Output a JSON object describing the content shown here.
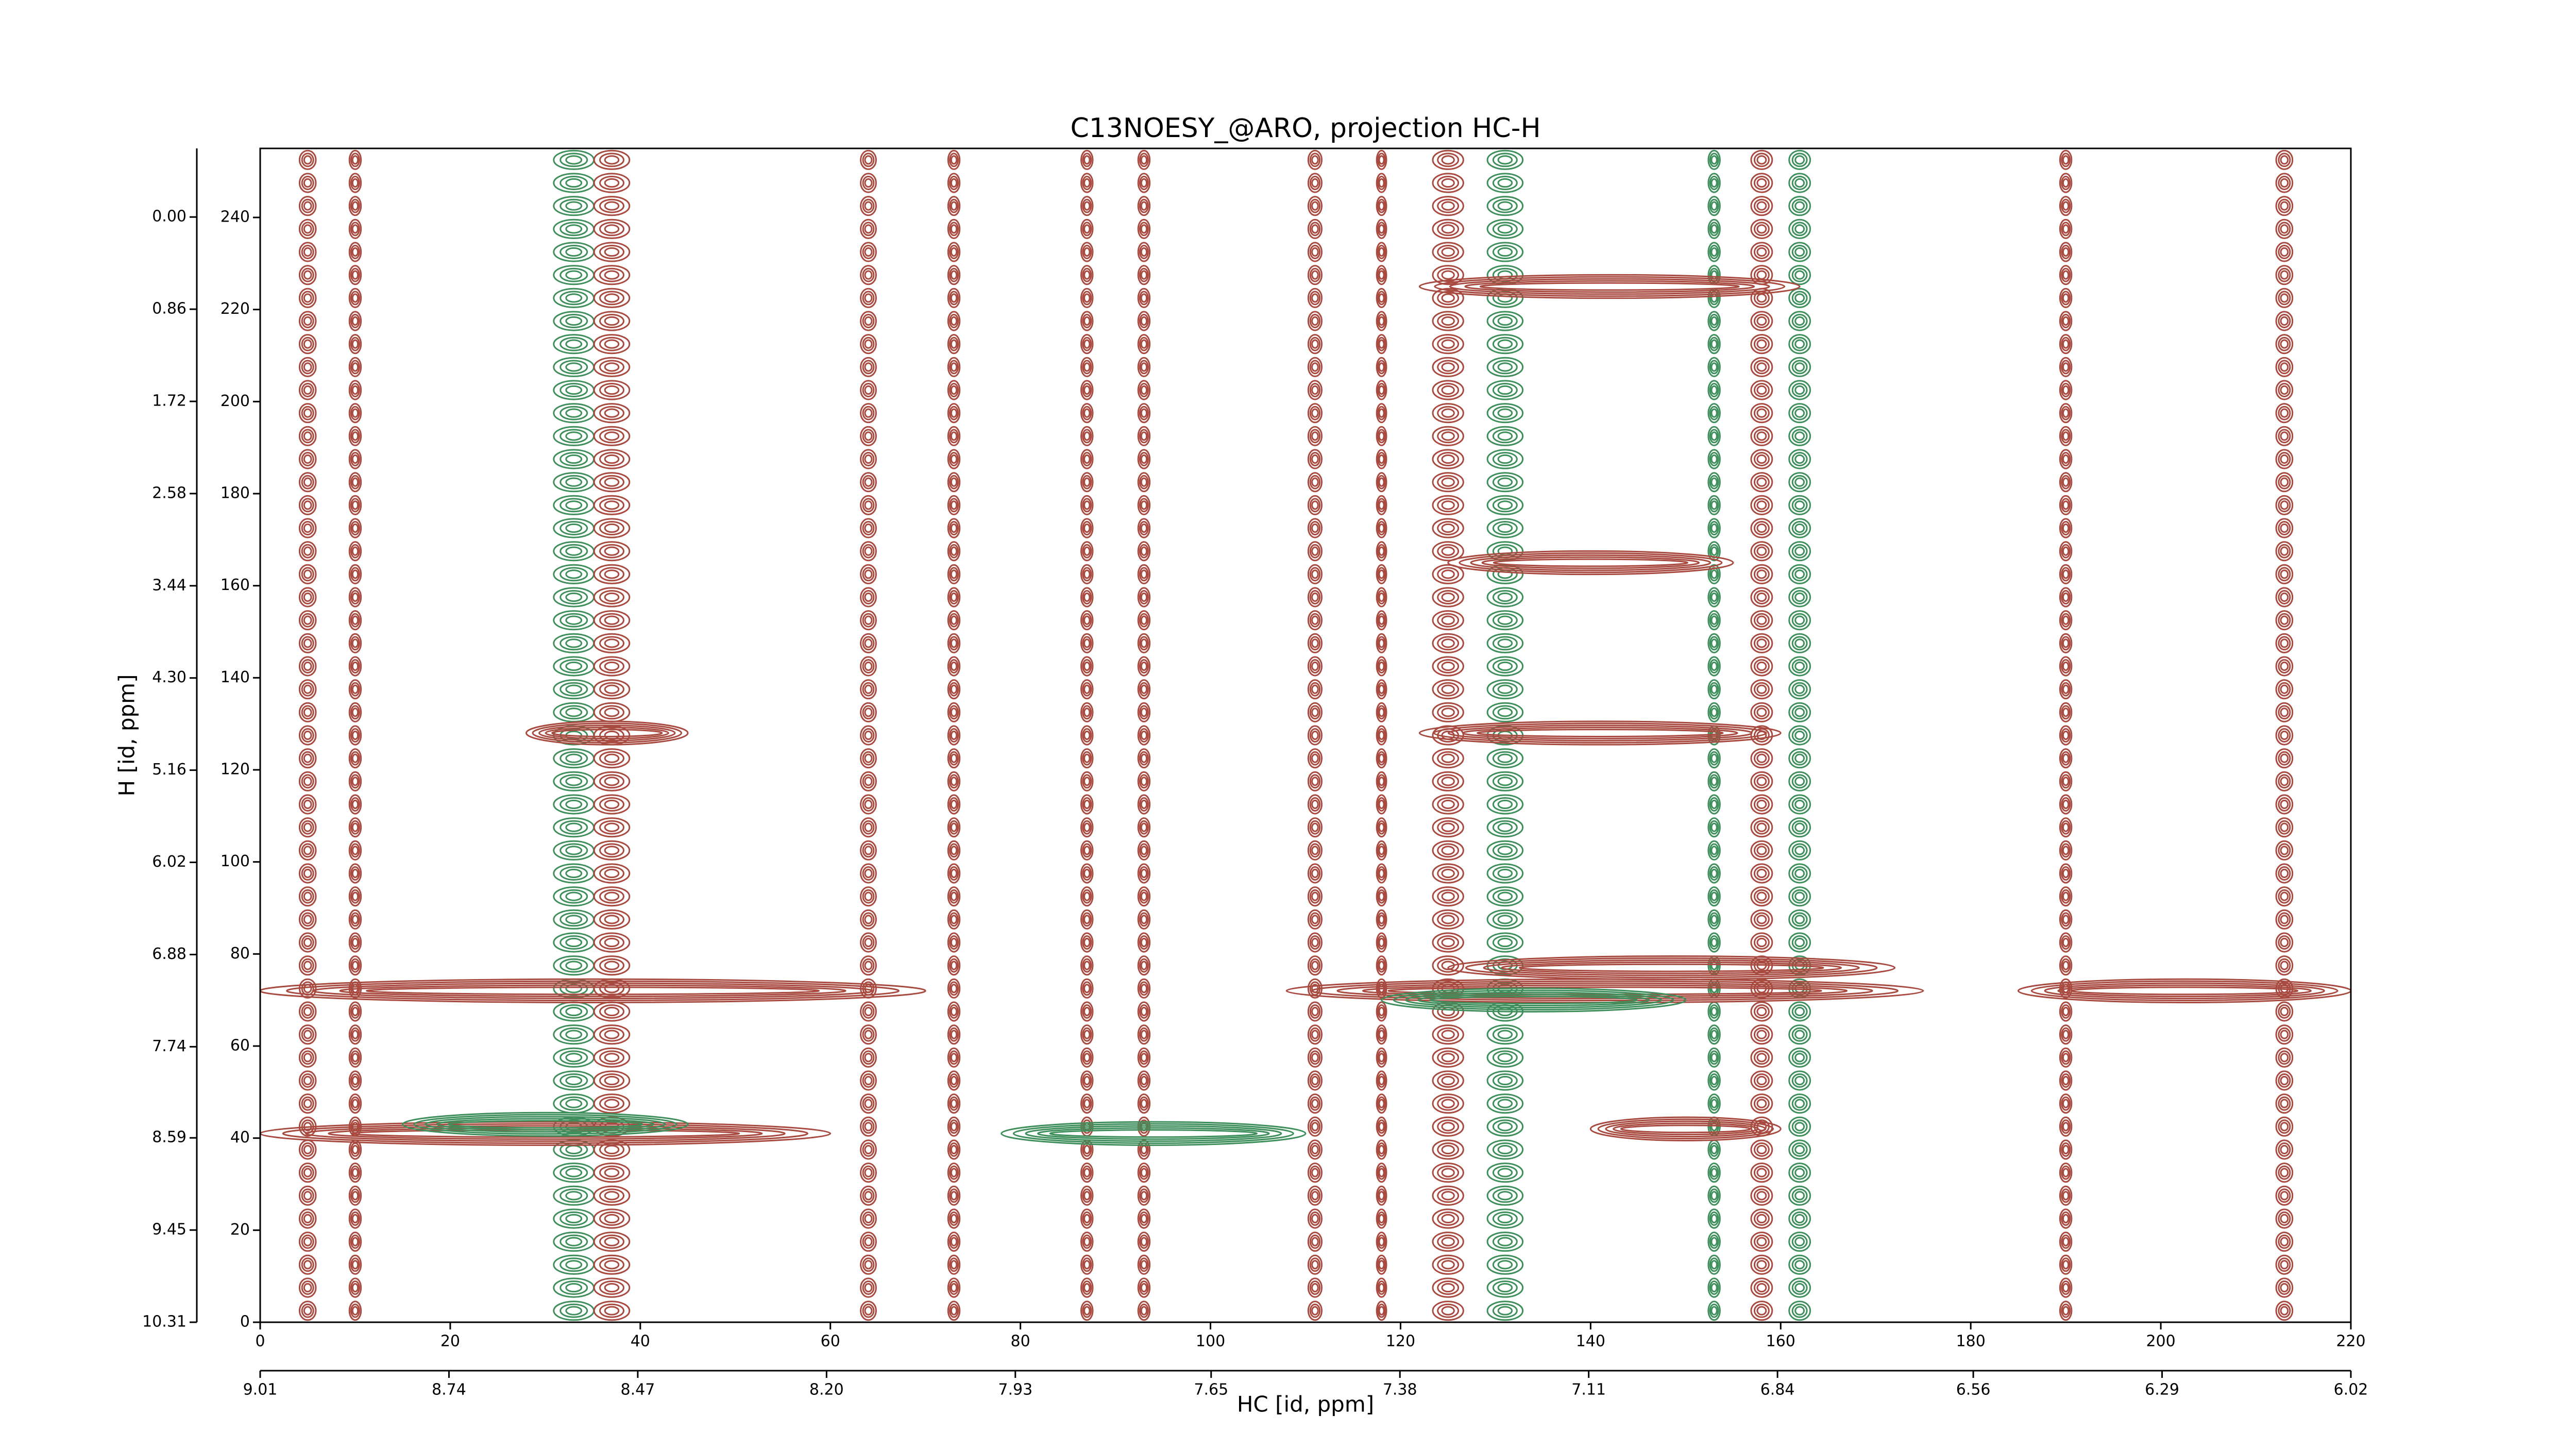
{
  "chart_data": {
    "type": "contour",
    "title": "C13NOESY_@ARO, projection HC-H",
    "x_label": "HC [id, ppm]",
    "y_label": "H [id, ppm]",
    "xlim": [
      0,
      220
    ],
    "xticks": [
      0,
      20,
      40,
      60,
      80,
      100,
      120,
      140,
      160,
      180,
      200,
      220
    ],
    "x2lim": [
      9.01,
      6.02
    ],
    "x2ticks": [
      9.01,
      8.74,
      8.47,
      {
        "value": 8.2,
        "label": "8.20"
      },
      7.93,
      7.65,
      7.38,
      7.11,
      6.84,
      6.56,
      6.29,
      6.02
    ],
    "ylim": [
      0,
      255
    ],
    "yticks": [
      0,
      20,
      40,
      60,
      80,
      100,
      120,
      140,
      160,
      180,
      200,
      220,
      240
    ],
    "y2lim": [
      10.31,
      -0.64
    ],
    "y2ticks": [
      10.31,
      9.45,
      8.59,
      7.74,
      6.88,
      6.02,
      5.16,
      {
        "value": 4.3,
        "label": "4.30"
      },
      3.44,
      2.58,
      1.72,
      0.86,
      {
        "value": 0,
        "label": "0.00"
      }
    ],
    "positive_color": "#a84a40",
    "negative_color": "#3f8f5c",
    "strips": [
      {
        "x": 5,
        "width": 1.5,
        "sign": "positive"
      },
      {
        "x": 10,
        "width": 1,
        "sign": "positive"
      },
      {
        "x": 33,
        "width": 4,
        "sign": "negative"
      },
      {
        "x": 37,
        "width": 3.5,
        "sign": "positive"
      },
      {
        "x": 64,
        "width": 1.4,
        "sign": "positive"
      },
      {
        "x": 73,
        "width": 1,
        "sign": "positive"
      },
      {
        "x": 87,
        "width": 1,
        "sign": "positive"
      },
      {
        "x": 93,
        "width": 1,
        "sign": "positive"
      },
      {
        "x": 111,
        "width": 1.2,
        "sign": "positive"
      },
      {
        "x": 118,
        "width": 0.8,
        "sign": "positive"
      },
      {
        "x": 125,
        "width": 3,
        "sign": "positive"
      },
      {
        "x": 131,
        "width": 3.5,
        "sign": "negative"
      },
      {
        "x": 153,
        "width": 1,
        "sign": "negative"
      },
      {
        "x": 158,
        "width": 2,
        "sign": "positive"
      },
      {
        "x": 162,
        "width": 2,
        "sign": "negative"
      },
      {
        "x": 190,
        "width": 1,
        "sign": "positive"
      },
      {
        "x": 213,
        "width": 1.5,
        "sign": "positive"
      }
    ],
    "ridges": [
      {
        "y": 41,
        "x_start": 0,
        "x_end": 60,
        "sign": "positive"
      },
      {
        "y": 43,
        "x_start": 15,
        "x_end": 45,
        "sign": "negative"
      },
      {
        "y": 41,
        "x_start": 78,
        "x_end": 110,
        "sign": "negative"
      },
      {
        "y": 42,
        "x_start": 140,
        "x_end": 160,
        "sign": "positive"
      },
      {
        "y": 72,
        "x_start": 0,
        "x_end": 70,
        "sign": "positive"
      },
      {
        "y": 72,
        "x_start": 108,
        "x_end": 175,
        "sign": "positive"
      },
      {
        "y": 70,
        "x_start": 118,
        "x_end": 150,
        "sign": "negative"
      },
      {
        "y": 77,
        "x_start": 125,
        "x_end": 172,
        "sign": "positive"
      },
      {
        "y": 72,
        "x_start": 185,
        "x_end": 220,
        "sign": "positive"
      },
      {
        "y": 128,
        "x_start": 28,
        "x_end": 45,
        "sign": "positive"
      },
      {
        "y": 128,
        "x_start": 122,
        "x_end": 160,
        "sign": "positive"
      },
      {
        "y": 165,
        "x_start": 125,
        "x_end": 155,
        "sign": "positive"
      },
      {
        "y": 225,
        "x_start": 122,
        "x_end": 162,
        "sign": "positive"
      }
    ]
  }
}
